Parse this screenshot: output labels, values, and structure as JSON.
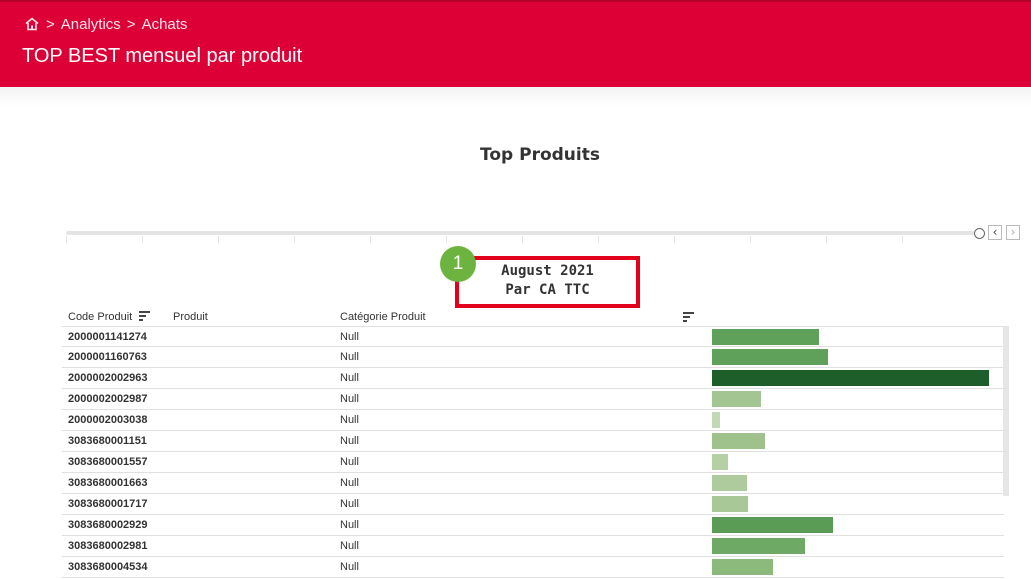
{
  "header": {
    "breadcrumb": [
      "Analytics",
      "Achats"
    ],
    "title": "TOP BEST mensuel par produit"
  },
  "chart_title": "Top Produits",
  "period": {
    "month": "August 2021",
    "measure": "Par CA TTC",
    "badge": "1"
  },
  "table": {
    "columns": [
      "Code Produit",
      "Produit",
      "Catégorie Produit"
    ],
    "rows": [
      {
        "code": "2000001141274",
        "category": "Null",
        "value": 0.385,
        "color": "#5fa05a"
      },
      {
        "code": "2000001160763",
        "category": "Null",
        "value": 0.418,
        "color": "#5fa05a"
      },
      {
        "code": "2000002002963",
        "category": "Null",
        "value": 1.0,
        "color": "#1e5e2a"
      },
      {
        "code": "2000002002987",
        "category": "Null",
        "value": 0.178,
        "color": "#a3c591"
      },
      {
        "code": "2000002003038",
        "category": "Null",
        "value": 0.03,
        "color": "#c3d9b6"
      },
      {
        "code": "3083680001151",
        "category": "Null",
        "value": 0.19,
        "color": "#9fc28d"
      },
      {
        "code": "3083680001557",
        "category": "Null",
        "value": 0.057,
        "color": "#b5d0a5"
      },
      {
        "code": "3083680001663",
        "category": "Null",
        "value": 0.126,
        "color": "#aecb9d"
      },
      {
        "code": "3083680001717",
        "category": "Null",
        "value": 0.13,
        "color": "#a9c897"
      },
      {
        "code": "3083680002929",
        "category": "Null",
        "value": 0.437,
        "color": "#5a9c56"
      },
      {
        "code": "3083680002981",
        "category": "Null",
        "value": 0.336,
        "color": "#6ea966"
      },
      {
        "code": "3083680004534",
        "category": "Null",
        "value": 0.22,
        "color": "#8cb97c"
      }
    ]
  },
  "colors": {
    "header": "#dc0036",
    "highlight_box": "#e3001b",
    "badge": "#6db33f"
  },
  "icons": [
    "home-icon",
    "sort-icon",
    "prev-icon",
    "next-icon"
  ]
}
